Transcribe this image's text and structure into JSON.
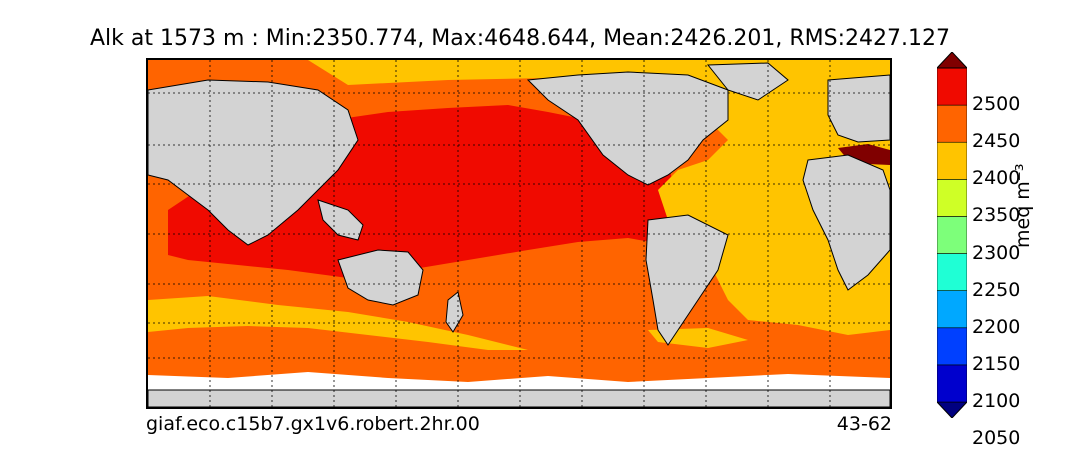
{
  "title": "Alk at 1573 m : Min:2350.774, Max:4648.644, Mean:2426.201, RMS:2427.127",
  "footer": {
    "case_name": "giaf.eco.c15b7.gx1v6.robert.2hr.00",
    "years": "43-62"
  },
  "colorbar": {
    "unit": "meq m⁻³",
    "ticks": [
      "2500",
      "2450",
      "2400",
      "2350",
      "2300",
      "2250",
      "2200",
      "2150",
      "2100",
      "2050"
    ],
    "colors": [
      "#000080",
      "#0000cd",
      "#0040ff",
      "#00a8ff",
      "#1fffd5",
      "#7dff7a",
      "#cfff26",
      "#ffc400",
      "#ff6400",
      "#f00a00",
      "#800000"
    ]
  },
  "map": {
    "land_color": "#d3d3d3",
    "region_colors": {
      "atlantic": "#ffc400",
      "pacific_indian": "#f00a00",
      "southern": "#ff6400",
      "mediterranean": "#800000"
    }
  }
}
